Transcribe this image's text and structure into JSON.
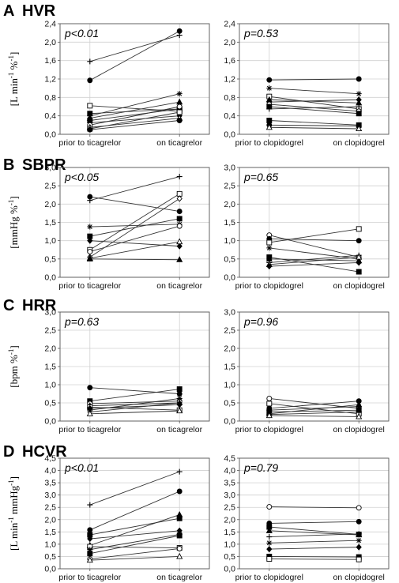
{
  "colors": {
    "line": "#333333",
    "grid": "#d0d0d0",
    "frame": "#555555"
  },
  "chart_data": [
    {
      "panel": "A",
      "title": "HVR",
      "type": "line",
      "ylabel": "[L min-1 %-1]",
      "ylim": [
        0,
        2.4
      ],
      "yticks": [
        "0,0",
        "0,4",
        "0,8",
        "1,2",
        "1,6",
        "2,0",
        "2,4"
      ],
      "charts": [
        {
          "categories": [
            "prior to ticagrelor",
            "on ticagrelor"
          ],
          "pvalue": "p<0.01",
          "series": [
            {
              "values": [
                1.58,
                2.15
              ],
              "marker": "plus"
            },
            {
              "values": [
                1.17,
                2.24
              ],
              "marker": "circle"
            },
            {
              "values": [
                0.62,
                0.5
              ],
              "marker": "square-open"
            },
            {
              "values": [
                0.45,
                0.55
              ],
              "marker": "square"
            },
            {
              "values": [
                0.4,
                0.88
              ],
              "marker": "star"
            },
            {
              "values": [
                0.35,
                0.7
              ],
              "marker": "triangle"
            },
            {
              "values": [
                0.3,
                0.55
              ],
              "marker": "square"
            },
            {
              "values": [
                0.25,
                0.4
              ],
              "marker": "diamond"
            },
            {
              "values": [
                0.2,
                0.6
              ],
              "marker": "circle-open"
            },
            {
              "values": [
                0.15,
                0.35
              ],
              "marker": "triangle-open"
            },
            {
              "values": [
                0.12,
                0.48
              ],
              "marker": "square-open"
            },
            {
              "values": [
                0.1,
                0.3
              ],
              "marker": "circle"
            }
          ]
        },
        {
          "categories": [
            "prior to clopidogrel",
            "on clopidogrel"
          ],
          "pvalue": "p=0.53",
          "series": [
            {
              "values": [
                1.18,
                1.2
              ],
              "marker": "circle"
            },
            {
              "values": [
                1.0,
                0.88
              ],
              "marker": "star"
            },
            {
              "values": [
                0.82,
                0.55
              ],
              "marker": "square-open"
            },
            {
              "values": [
                0.75,
                0.68
              ],
              "marker": "triangle"
            },
            {
              "values": [
                0.7,
                0.75
              ],
              "marker": "diamond"
            },
            {
              "values": [
                0.65,
                0.5
              ],
              "marker": "circle-open"
            },
            {
              "values": [
                0.6,
                0.45
              ],
              "marker": "square"
            },
            {
              "values": [
                0.55,
                0.6
              ],
              "marker": "plus"
            },
            {
              "values": [
                0.3,
                0.2
              ],
              "marker": "square"
            },
            {
              "values": [
                0.2,
                0.18
              ],
              "marker": "circle"
            },
            {
              "values": [
                0.15,
                0.12
              ],
              "marker": "triangle-open"
            }
          ]
        }
      ]
    },
    {
      "panel": "B",
      "title": "SBPR",
      "type": "line",
      "ylabel": "[mmHg %-1]",
      "ylim": [
        0,
        3.0
      ],
      "yticks": [
        "0,0",
        "0,5",
        "1,0",
        "1,5",
        "2,0",
        "2,5",
        "3,0"
      ],
      "charts": [
        {
          "categories": [
            "prior to ticagrelor",
            "on ticagrelor"
          ],
          "pvalue": "p<0.05",
          "series": [
            {
              "values": [
                2.1,
                2.75
              ],
              "marker": "plus"
            },
            {
              "values": [
                2.2,
                1.8
              ],
              "marker": "circle"
            },
            {
              "values": [
                1.38,
                1.45
              ],
              "marker": "star"
            },
            {
              "values": [
                1.12,
                1.6
              ],
              "marker": "square"
            },
            {
              "values": [
                1.0,
                0.85
              ],
              "marker": "diamond"
            },
            {
              "values": [
                0.75,
                2.28
              ],
              "marker": "square-open"
            },
            {
              "values": [
                0.7,
                1.4
              ],
              "marker": "circle-open"
            },
            {
              "values": [
                0.55,
                2.15
              ],
              "marker": "diamond-open"
            },
            {
              "values": [
                0.52,
                0.97
              ],
              "marker": "triangle-open"
            },
            {
              "values": [
                0.5,
                0.48
              ],
              "marker": "triangle"
            }
          ]
        },
        {
          "categories": [
            "prior to clopidogrel",
            "on clopidogrel"
          ],
          "pvalue": "p=0.65",
          "series": [
            {
              "values": [
                1.15,
                0.55
              ],
              "marker": "circle-open"
            },
            {
              "values": [
                1.05,
                1.0
              ],
              "marker": "circle"
            },
            {
              "values": [
                0.95,
                1.32
              ],
              "marker": "square-open"
            },
            {
              "values": [
                0.8,
                0.5
              ],
              "marker": "star"
            },
            {
              "values": [
                0.55,
                0.15
              ],
              "marker": "square"
            },
            {
              "values": [
                0.5,
                0.45
              ],
              "marker": "triangle"
            },
            {
              "values": [
                0.4,
                0.6
              ],
              "marker": "plus"
            },
            {
              "values": [
                0.35,
                0.55
              ],
              "marker": "triangle-open"
            },
            {
              "values": [
                0.3,
                0.4
              ],
              "marker": "diamond"
            }
          ]
        }
      ]
    },
    {
      "panel": "C",
      "title": "HRR",
      "type": "line",
      "ylabel": "[bpm %-1]",
      "ylim": [
        0,
        3.0
      ],
      "yticks": [
        "0,0",
        "0,5",
        "1,0",
        "1,5",
        "2,0",
        "2,5",
        "3,0"
      ],
      "charts": [
        {
          "categories": [
            "prior to ticagrelor",
            "on ticagrelor"
          ],
          "pvalue": "p=0.63",
          "series": [
            {
              "values": [
                0.92,
                0.75
              ],
              "marker": "circle"
            },
            {
              "values": [
                0.55,
                0.88
              ],
              "marker": "square"
            },
            {
              "values": [
                0.48,
                0.55
              ],
              "marker": "circle-open"
            },
            {
              "values": [
                0.42,
                0.5
              ],
              "marker": "triangle"
            },
            {
              "values": [
                0.38,
                0.3
              ],
              "marker": "square-open"
            },
            {
              "values": [
                0.35,
                0.45
              ],
              "marker": "diamond"
            },
            {
              "values": [
                0.3,
                0.62
              ],
              "marker": "star"
            },
            {
              "values": [
                0.25,
                0.5
              ],
              "marker": "plus"
            },
            {
              "values": [
                0.2,
                0.28
              ],
              "marker": "triangle-open"
            }
          ]
        },
        {
          "categories": [
            "prior to clopidogrel",
            "on clopidogrel"
          ],
          "pvalue": "p=0.96",
          "series": [
            {
              "values": [
                0.62,
                0.35
              ],
              "marker": "circle-open"
            },
            {
              "values": [
                0.48,
                0.2
              ],
              "marker": "square-open"
            },
            {
              "values": [
                0.35,
                0.55
              ],
              "marker": "circle"
            },
            {
              "values": [
                0.3,
                0.4
              ],
              "marker": "star"
            },
            {
              "values": [
                0.25,
                0.3
              ],
              "marker": "square"
            },
            {
              "values": [
                0.2,
                0.45
              ],
              "marker": "triangle"
            },
            {
              "values": [
                0.18,
                0.25
              ],
              "marker": "plus"
            },
            {
              "values": [
                0.15,
                0.12
              ],
              "marker": "triangle-open"
            }
          ]
        }
      ]
    },
    {
      "panel": "D",
      "title": "HCVR",
      "type": "line",
      "ylabel": "[L min-1 mmHg-1]",
      "ylim": [
        0,
        4.5
      ],
      "yticks": [
        "0,0",
        "0,5",
        "1,0",
        "1,5",
        "2,0",
        "2,5",
        "3,0",
        "3,5",
        "4,0",
        "4,5"
      ],
      "charts": [
        {
          "categories": [
            "prior to ticagrelor",
            "on ticagrelor"
          ],
          "pvalue": "p<0.01",
          "series": [
            {
              "values": [
                2.6,
                3.95
              ],
              "marker": "plus"
            },
            {
              "values": [
                1.58,
                3.15
              ],
              "marker": "circle"
            },
            {
              "values": [
                1.38,
                2.05
              ],
              "marker": "square"
            },
            {
              "values": [
                1.22,
                1.55
              ],
              "marker": "diamond"
            },
            {
              "values": [
                0.95,
                2.2
              ],
              "marker": "triangle"
            },
            {
              "values": [
                0.9,
                0.85
              ],
              "marker": "square-open"
            },
            {
              "values": [
                0.78,
                1.4
              ],
              "marker": "star"
            },
            {
              "values": [
                0.62,
                1.35
              ],
              "marker": "square"
            },
            {
              "values": [
                0.4,
                0.82
              ],
              "marker": "circle-open"
            },
            {
              "values": [
                0.35,
                0.5
              ],
              "marker": "triangle-open"
            }
          ]
        },
        {
          "categories": [
            "prior to clopidogrel",
            "on clopidogrel"
          ],
          "pvalue": "p=0.79",
          "series": [
            {
              "values": [
                2.52,
                2.48
              ],
              "marker": "circle-open"
            },
            {
              "values": [
                1.85,
                1.92
              ],
              "marker": "circle"
            },
            {
              "values": [
                1.7,
                1.4
              ],
              "marker": "square"
            },
            {
              "values": [
                1.55,
                1.38
              ],
              "marker": "triangle"
            },
            {
              "values": [
                1.3,
                1.42
              ],
              "marker": "plus"
            },
            {
              "values": [
                1.05,
                1.15
              ],
              "marker": "star"
            },
            {
              "values": [
                0.8,
                0.88
              ],
              "marker": "diamond"
            },
            {
              "values": [
                0.5,
                0.48
              ],
              "marker": "square"
            },
            {
              "values": [
                0.4,
                0.38
              ],
              "marker": "square-open"
            }
          ]
        }
      ]
    }
  ]
}
